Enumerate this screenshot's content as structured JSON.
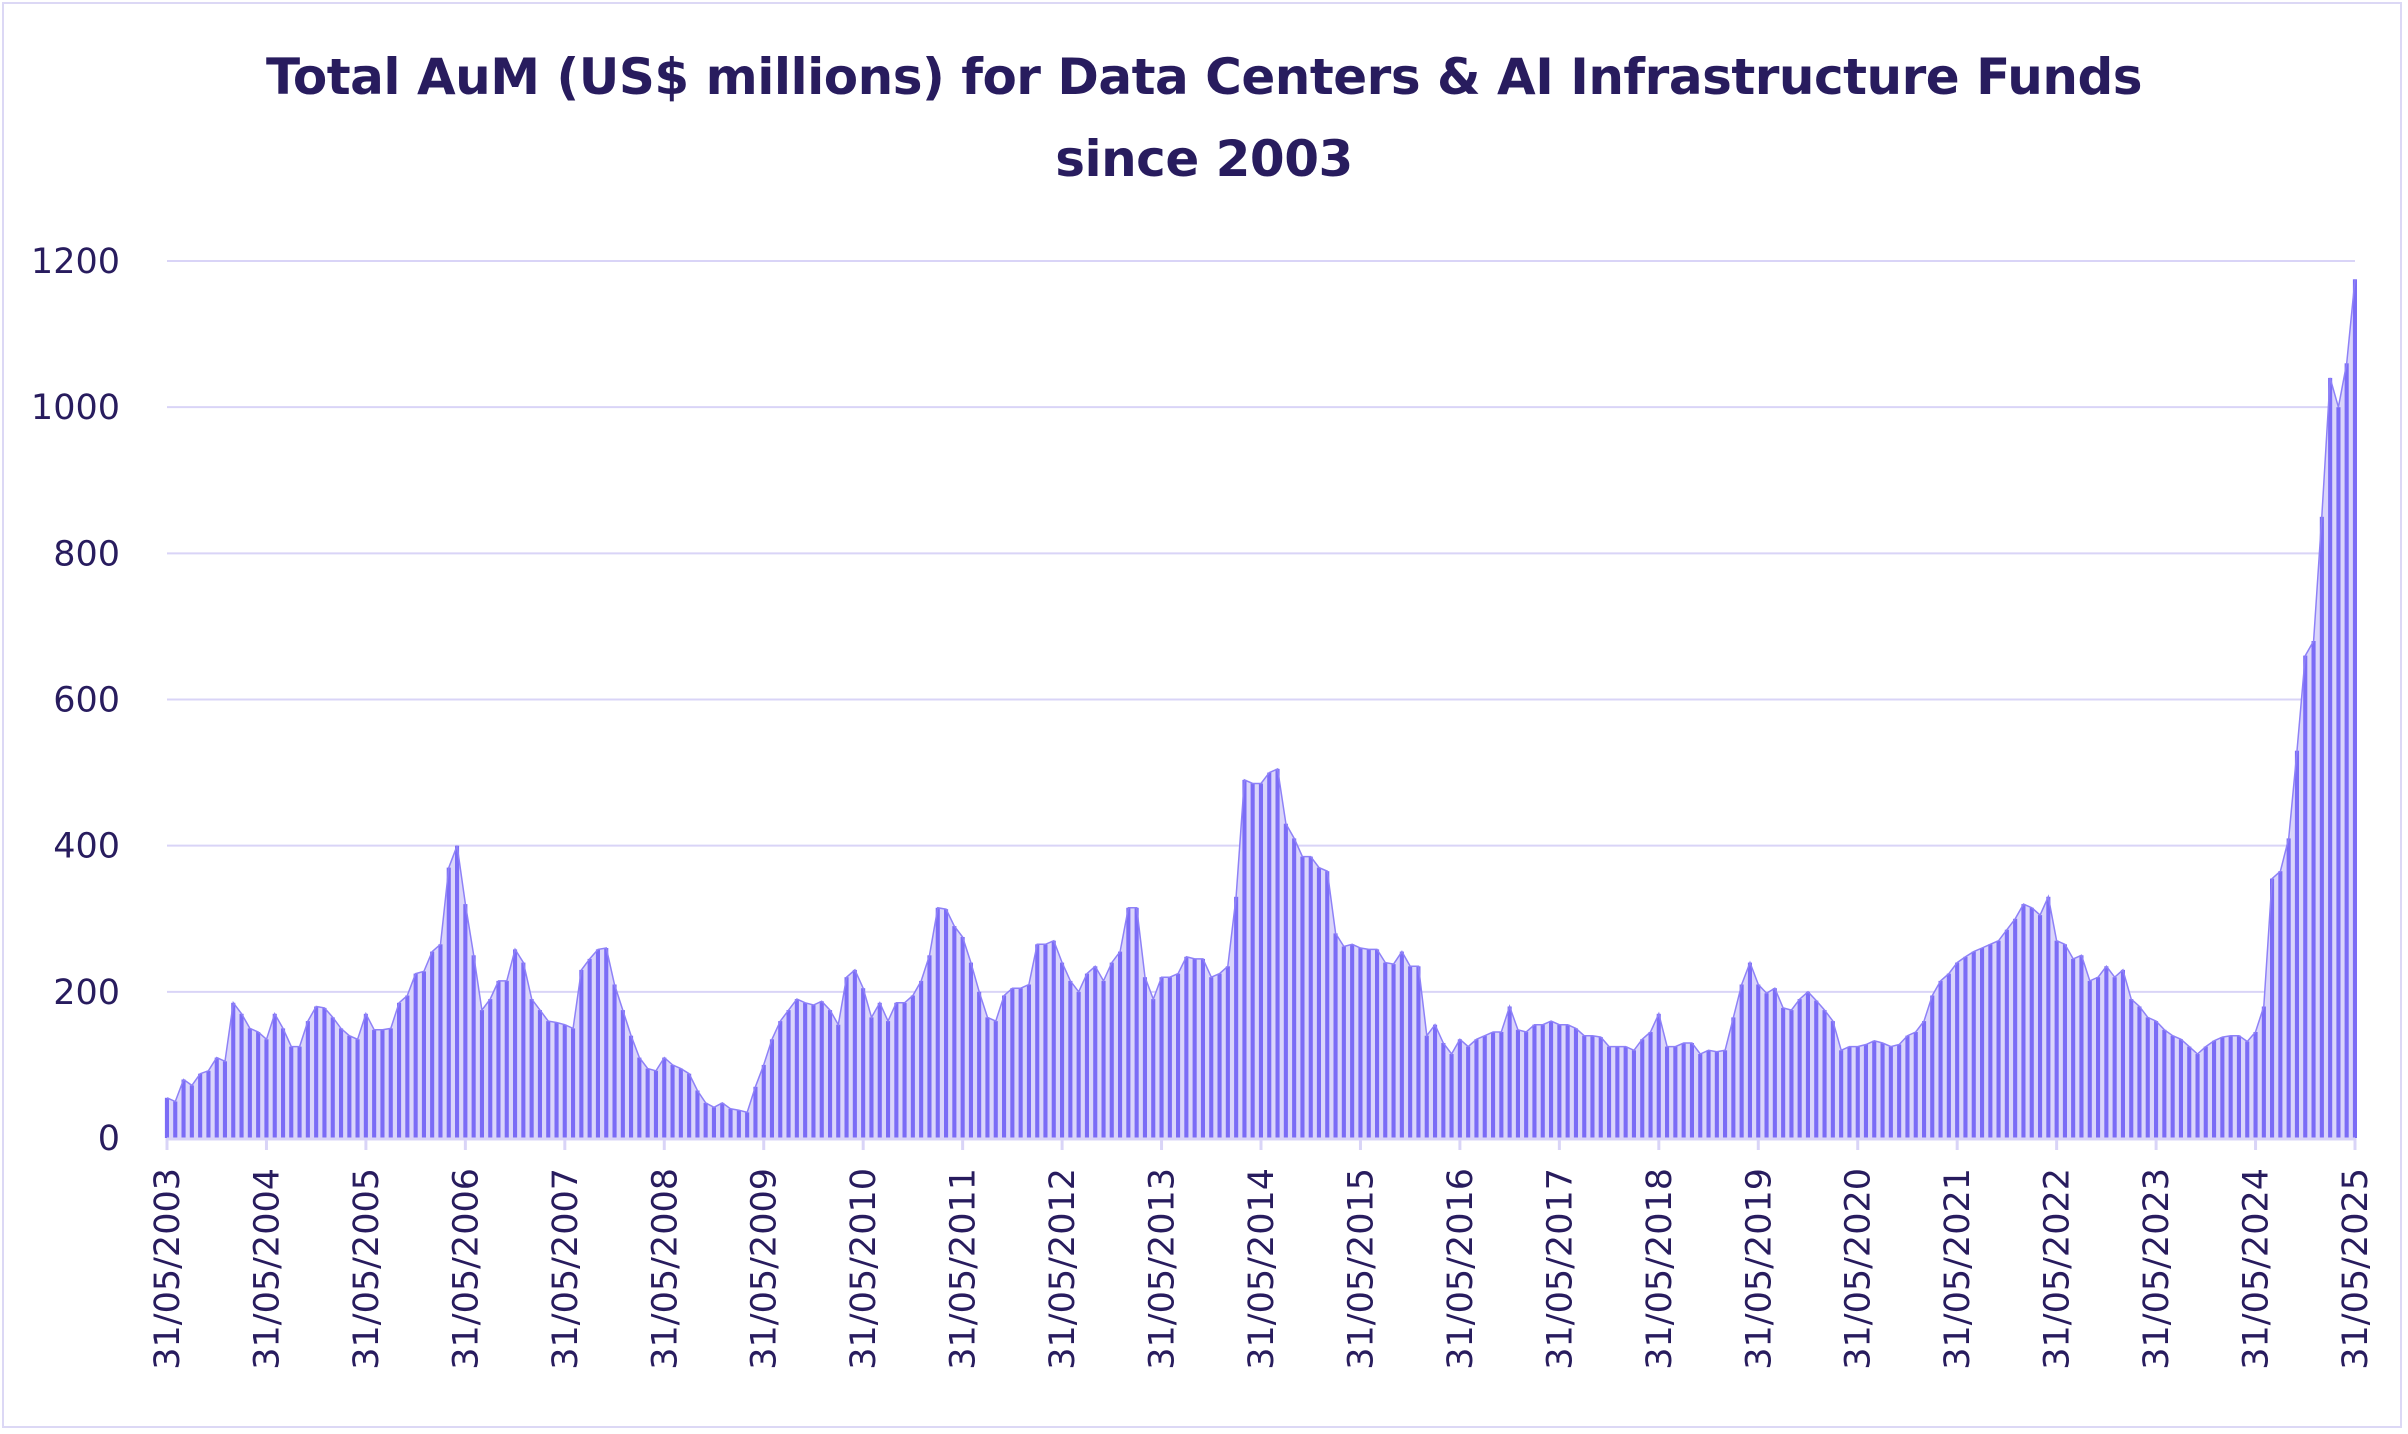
{
  "chart_data": {
    "type": "area",
    "title": "Total AuM (US$ millions) for Data Centers & AI Infrastructure Funds",
    "subtitle": "since 2003",
    "xlabel": "",
    "ylabel": "",
    "ylim": [
      0,
      1200
    ],
    "yticks": [
      "0",
      "200",
      "400",
      "600",
      "800",
      "1000",
      "1200"
    ],
    "grid": true,
    "x_start": "2003-05",
    "x_frequency": "monthly",
    "xticks": [
      "31/05/2003",
      "31/05/2004",
      "31/05/2005",
      "31/05/2006",
      "31/05/2007",
      "31/05/2008",
      "31/05/2009",
      "31/05/2010",
      "31/05/2011",
      "31/05/2012",
      "31/05/2013",
      "31/05/2014",
      "31/05/2015",
      "31/05/2016",
      "31/05/2017",
      "31/05/2018",
      "31/05/2019",
      "31/05/2020",
      "31/05/2021",
      "31/05/2022",
      "31/05/2023",
      "31/05/2024",
      "31/05/2025"
    ],
    "values": [
      55,
      50,
      80,
      72,
      88,
      92,
      110,
      105,
      185,
      170,
      150,
      145,
      135,
      170,
      150,
      125,
      125,
      160,
      180,
      178,
      165,
      150,
      140,
      135,
      170,
      148,
      148,
      150,
      185,
      195,
      225,
      228,
      255,
      265,
      370,
      400,
      320,
      250,
      175,
      190,
      215,
      215,
      258,
      240,
      190,
      175,
      160,
      158,
      155,
      150,
      230,
      245,
      258,
      260,
      210,
      175,
      140,
      110,
      95,
      92,
      110,
      100,
      95,
      88,
      65,
      48,
      42,
      48,
      40,
      38,
      35,
      70,
      100,
      135,
      160,
      175,
      190,
      185,
      182,
      187,
      175,
      155,
      220,
      230,
      205,
      165,
      185,
      160,
      185,
      185,
      195,
      215,
      250,
      315,
      313,
      290,
      275,
      240,
      200,
      165,
      160,
      195,
      205,
      205,
      210,
      265,
      265,
      270,
      240,
      215,
      200,
      225,
      235,
      215,
      240,
      255,
      315,
      315,
      220,
      190,
      220,
      220,
      225,
      248,
      245,
      245,
      220,
      225,
      235,
      330,
      490,
      485,
      485,
      500,
      505,
      430,
      410,
      385,
      385,
      370,
      365,
      280,
      262,
      265,
      260,
      258,
      258,
      240,
      238,
      255,
      235,
      235,
      140,
      155,
      130,
      115,
      135,
      125,
      135,
      140,
      145,
      145,
      180,
      148,
      145,
      155,
      155,
      160,
      155,
      155,
      150,
      140,
      140,
      138,
      125,
      125,
      125,
      120,
      135,
      145,
      170,
      125,
      125,
      130,
      130,
      115,
      120,
      118,
      120,
      165,
      210,
      240,
      210,
      198,
      205,
      178,
      175,
      190,
      200,
      188,
      175,
      160,
      120,
      125,
      125,
      128,
      133,
      130,
      125,
      128,
      140,
      145,
      160,
      195,
      215,
      225,
      240,
      248,
      255,
      260,
      265,
      270,
      285,
      300,
      320,
      315,
      305,
      330,
      270,
      265,
      245,
      250,
      215,
      220,
      235,
      220,
      230,
      190,
      180,
      165,
      160,
      148,
      140,
      135,
      125,
      115,
      125,
      133,
      138,
      140,
      140,
      132,
      145,
      180,
      355,
      365,
      410,
      530,
      660,
      680,
      850,
      1040,
      1000,
      1060,
      1175
    ],
    "colors": {
      "bar": "#7B6CF6",
      "fill": "#DAD5FB",
      "line": "#8E81F7",
      "grid": "#D9D4F7",
      "text": "#281C5E"
    }
  }
}
